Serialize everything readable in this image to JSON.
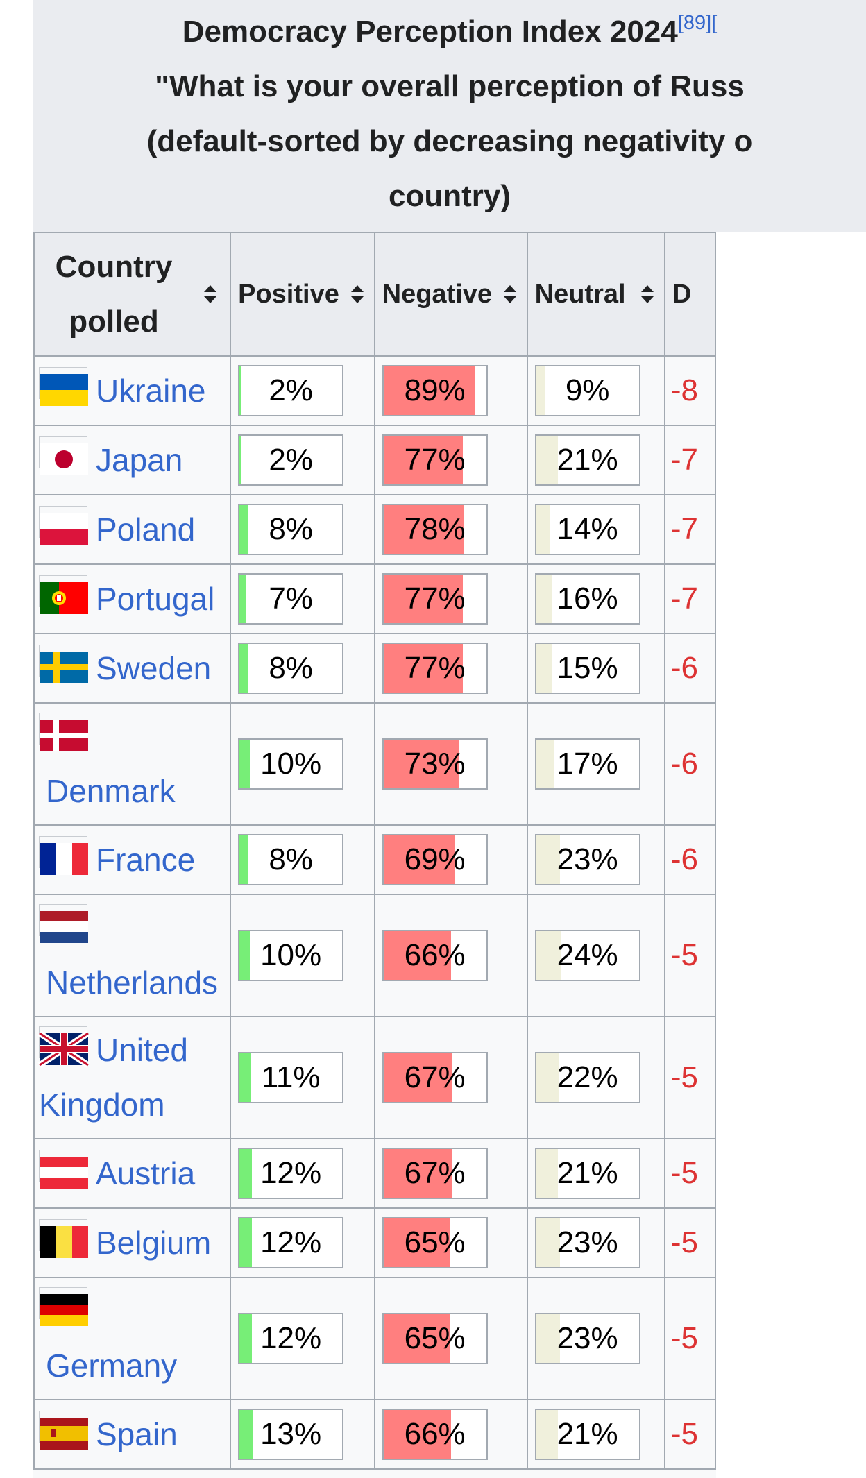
{
  "caption": {
    "line1": "Democracy Perception Index 2024",
    "ref": "[89][",
    "line2": "\"What is your overall perception of Russ",
    "line3": "(default-sorted by decreasing negativity o",
    "line4": "country)"
  },
  "headers": {
    "country": "Country polled",
    "positive": "Positive",
    "negative": "Negative",
    "neutral": "Neutral",
    "diff": "D"
  },
  "colors": {
    "positive": "#77ee77",
    "negative": "#ff7f7f",
    "neutral": "#f0f0dc",
    "link": "#3366cc",
    "diff": "#dd3333"
  },
  "rows": [
    {
      "country": "Ukraine",
      "flag": "ukraine",
      "positive": 2,
      "negative": 89,
      "neutral": 9,
      "diff": "-8",
      "positive_label": "2%",
      "negative_label": "89%",
      "neutral_label": "9%"
    },
    {
      "country": "Japan",
      "flag": "japan",
      "positive": 2,
      "negative": 77,
      "neutral": 21,
      "diff": "-7",
      "positive_label": "2%",
      "negative_label": "77%",
      "neutral_label": "21%"
    },
    {
      "country": "Poland",
      "flag": "poland",
      "positive": 8,
      "negative": 78,
      "neutral": 14,
      "diff": "-7",
      "positive_label": "8%",
      "negative_label": "78%",
      "neutral_label": "14%"
    },
    {
      "country": "Portugal",
      "flag": "portugal",
      "positive": 7,
      "negative": 77,
      "neutral": 16,
      "diff": "-7",
      "positive_label": "7%",
      "negative_label": "77%",
      "neutral_label": "16%"
    },
    {
      "country": "Sweden",
      "flag": "sweden",
      "positive": 8,
      "negative": 77,
      "neutral": 15,
      "diff": "-6",
      "positive_label": "8%",
      "negative_label": "77%",
      "neutral_label": "15%"
    },
    {
      "country": "Denmark",
      "flag": "denmark",
      "positive": 10,
      "negative": 73,
      "neutral": 17,
      "diff": "-6",
      "positive_label": "10%",
      "negative_label": "73%",
      "neutral_label": "17%"
    },
    {
      "country": "France",
      "flag": "france",
      "positive": 8,
      "negative": 69,
      "neutral": 23,
      "diff": "-6",
      "positive_label": "8%",
      "negative_label": "69%",
      "neutral_label": "23%"
    },
    {
      "country": "Netherlands",
      "flag": "netherlands",
      "positive": 10,
      "negative": 66,
      "neutral": 24,
      "diff": "-5",
      "positive_label": "10%",
      "negative_label": "66%",
      "neutral_label": "24%"
    },
    {
      "country": "United Kingdom",
      "flag": "uk",
      "positive": 11,
      "negative": 67,
      "neutral": 22,
      "diff": "-5",
      "positive_label": "11%",
      "negative_label": "67%",
      "neutral_label": "22%"
    },
    {
      "country": "Austria",
      "flag": "austria",
      "positive": 12,
      "negative": 67,
      "neutral": 21,
      "diff": "-5",
      "positive_label": "12%",
      "negative_label": "67%",
      "neutral_label": "21%"
    },
    {
      "country": "Belgium",
      "flag": "belgium",
      "positive": 12,
      "negative": 65,
      "neutral": 23,
      "diff": "-5",
      "positive_label": "12%",
      "negative_label": "65%",
      "neutral_label": "23%"
    },
    {
      "country": "Germany",
      "flag": "germany",
      "positive": 12,
      "negative": 65,
      "neutral": 23,
      "diff": "-5",
      "positive_label": "12%",
      "negative_label": "65%",
      "neutral_label": "23%"
    },
    {
      "country": "Spain",
      "flag": "spain",
      "positive": 13,
      "negative": 66,
      "neutral": 21,
      "diff": "-5",
      "positive_label": "13%",
      "negative_label": "66%",
      "neutral_label": "21%"
    }
  ]
}
